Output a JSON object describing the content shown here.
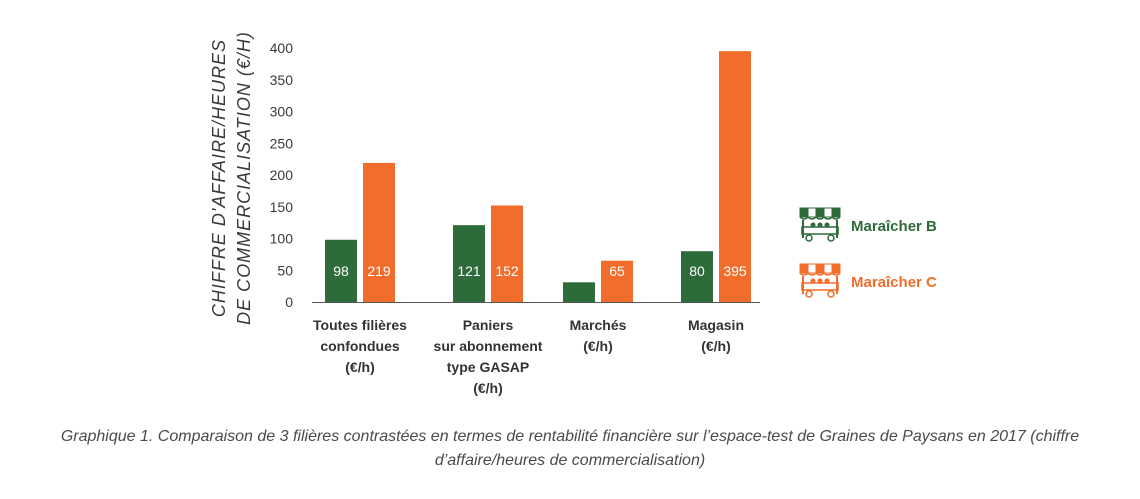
{
  "chart_data": {
    "type": "bar",
    "categories": [
      [
        "Toutes filières",
        "confondues",
        "(€/h)"
      ],
      [
        "Paniers",
        "sur abonnement",
        "type GASAP",
        "(€/h)"
      ],
      [
        "Marchés",
        "(€/h)"
      ],
      [
        "Magasin",
        "(€/h)"
      ]
    ],
    "series": [
      {
        "name": "Maraîcher B",
        "values": [
          98,
          121,
          31,
          80
        ],
        "color": "#2e6b3a"
      },
      {
        "name": "Maraîcher C",
        "values": [
          219,
          152,
          65,
          395
        ],
        "color": "#f26d2b"
      }
    ],
    "ylabel_lines": [
      "CHIFFRE D'AFFAIRE/HEURES",
      "DE COMMERCIALISATION (€/H)"
    ],
    "ylim": [
      0,
      400
    ],
    "yticks": [
      0,
      50,
      100,
      150,
      200,
      250,
      300,
      350,
      400
    ],
    "grid": false,
    "legend_position": "right",
    "legend_icon": "market-stall-icon"
  },
  "caption": "Graphique 1. Comparaison de 3 filières contrastées en termes de rentabilité financière sur l’espace-test de Graines de Paysans en 2017 (chiffre d’affaire/heures de commercialisation)"
}
